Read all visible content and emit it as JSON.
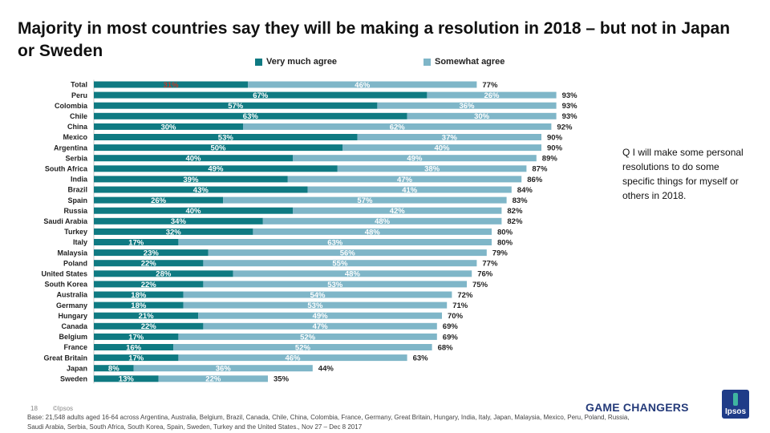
{
  "title": "Majority in most countries say they will be making a resolution in 2018 – but not in Japan or Sweden",
  "question": "Q I will make some personal resolutions to do some specific things for myself or others in 2018.",
  "footer": {
    "page_number": "18",
    "copyright": "©Ipsos",
    "base": "Base: 21,548 adults aged 16-64 across Argentina, Australia, Belgium, Brazil, Canada, Chile, China, Colombia, France, Germany, Great Britain, Hungary, India, Italy, Japan, Malaysia, Mexico, Peru, Poland, Russia, Saudi Arabia, Serbia, South Africa, South Korea, Spain, Sweden, Turkey and the United States., Nov 27 – Dec 8 2017",
    "brand": "GAME CHANGERS",
    "logo_text": "Ipsos"
  },
  "colors": {
    "very_much": "#0f7a82",
    "somewhat": "#7fb6c8",
    "brand": "#253b7a",
    "highlight_label": "#c0392b"
  },
  "chart_data": {
    "type": "bar",
    "orientation": "horizontal",
    "stacked": true,
    "categories": [
      "Total",
      "Peru",
      "Colombia",
      "Chile",
      "China",
      "Mexico",
      "Argentina",
      "Serbia",
      "South Africa",
      "India",
      "Brazil",
      "Spain",
      "Russia",
      "Saudi Arabia",
      "Turkey",
      "Italy",
      "Malaysia",
      "Poland",
      "United States",
      "South Korea",
      "Australia",
      "Germany",
      "Hungary",
      "Canada",
      "Belgium",
      "France",
      "Great Britain",
      "Japan",
      "Sweden"
    ],
    "series": [
      {
        "name": "Very much agree",
        "values": [
          31,
          67,
          57,
          63,
          30,
          53,
          50,
          40,
          49,
          39,
          43,
          26,
          40,
          34,
          32,
          17,
          23,
          22,
          28,
          22,
          18,
          18,
          21,
          22,
          17,
          16,
          17,
          8,
          13
        ]
      },
      {
        "name": "Somewhat agree",
        "values": [
          46,
          26,
          36,
          30,
          62,
          37,
          40,
          49,
          38,
          47,
          41,
          57,
          42,
          48,
          48,
          63,
          56,
          55,
          48,
          53,
          54,
          53,
          49,
          47,
          52,
          52,
          46,
          36,
          22
        ]
      }
    ],
    "totals": [
      77,
      93,
      93,
      93,
      92,
      90,
      90,
      89,
      87,
      86,
      84,
      83,
      82,
      82,
      80,
      80,
      79,
      77,
      76,
      75,
      72,
      71,
      70,
      69,
      69,
      68,
      63,
      44,
      35
    ],
    "legend_position": "top",
    "grid": false
  }
}
